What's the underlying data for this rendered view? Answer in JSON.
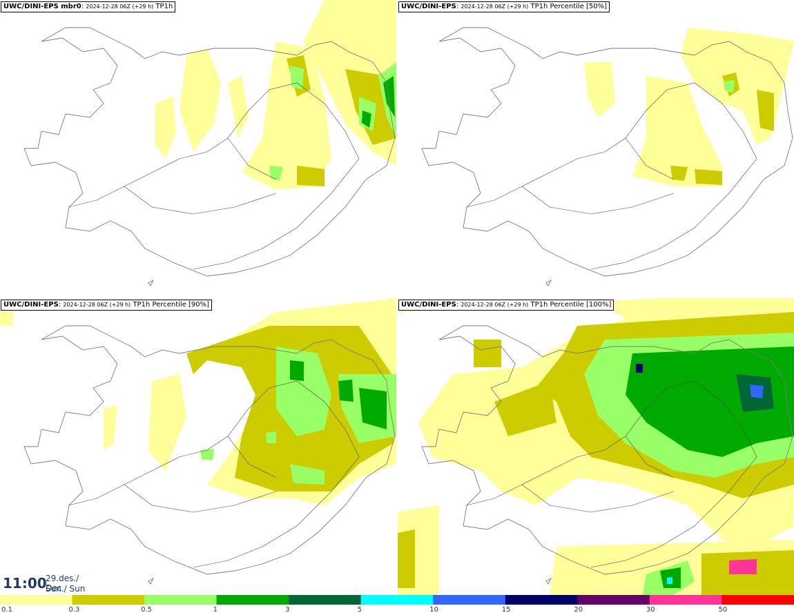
{
  "panels": [
    {
      "model": "UWC/DINI-EPS mbr0",
      "datetime": "2024-12-28 06Z (+29 h)",
      "field": "TP1h"
    },
    {
      "model": "UWC/DINI-EPS",
      "datetime": "2024-12-28 06Z (+29 h)",
      "field": "TP1h Percentile [50%]"
    },
    {
      "model": "UWC/DINI-EPS",
      "datetime": "2024-12-28 06Z (+29 h)",
      "field": "TP1h Percentile [90%]"
    },
    {
      "model": "UWC/DINI-EPS",
      "datetime": "2024-12-28 06Z (+29 h)",
      "field": "TP1h Percentile [100%]"
    }
  ],
  "valid_time": {
    "time": "11:00",
    "date_line1": "29.des./ Dec",
    "date_line2": "Sun./ Sun"
  },
  "legend": {
    "ticks": [
      "0.1",
      "0.3",
      "0.5",
      "1",
      "3",
      "5",
      "10",
      "15",
      "20",
      "30",
      "50"
    ],
    "colors": [
      "#ffff99",
      "#cccc00",
      "#99ff66",
      "#00aa00",
      "#006633",
      "#00ffff",
      "#3366ff",
      "#000066",
      "#660066",
      "#ff3399",
      "#ff0000"
    ]
  },
  "colors": {
    "coast": "#7a7a7a",
    "road": "#444444",
    "label_text": "#1f3b66"
  }
}
